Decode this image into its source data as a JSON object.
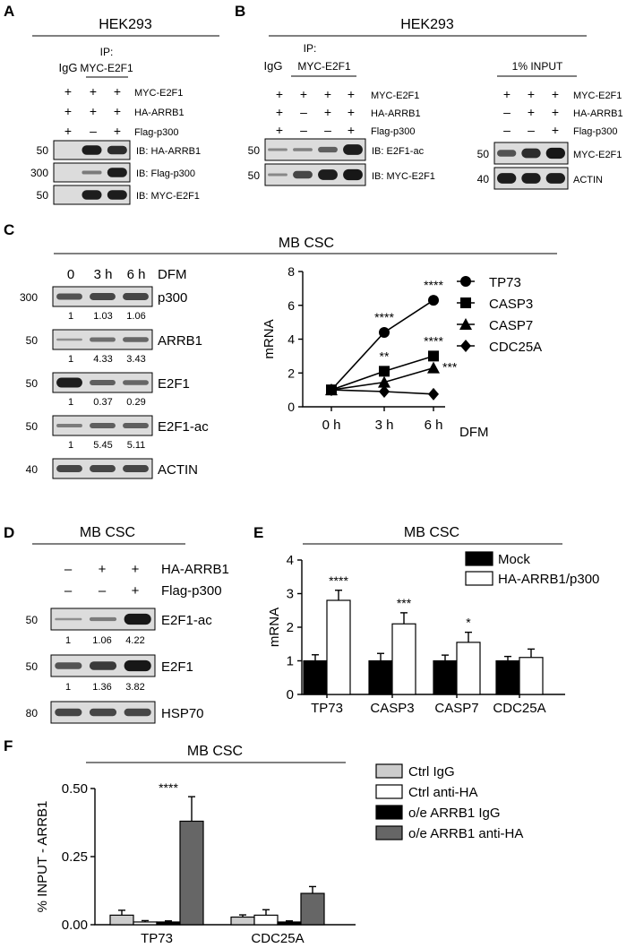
{
  "panelA": {
    "letter": "A",
    "cell_line": "HEK293",
    "ip_label": "IP:",
    "igg_label": "IgG",
    "ip_target": "MYC-E2F1",
    "signs": [
      [
        "+",
        "+",
        "+"
      ],
      [
        "+",
        "+",
        "+"
      ],
      [
        "+",
        "–",
        "+"
      ]
    ],
    "row_labels": [
      "MYC-E2F1",
      "HA-ARRB1",
      "Flag-p300"
    ],
    "blots": [
      {
        "mw": "50",
        "label": "IB: HA-ARRB1"
      },
      {
        "mw": "300",
        "label": "IB: Flag-p300"
      },
      {
        "mw": "50",
        "label": "IB: MYC-E2F1"
      }
    ]
  },
  "panelB": {
    "letter": "B",
    "cell_line": "HEK293",
    "ip_label": "IP:",
    "igg_label": "IgG",
    "ip_target": "MYC-E2F1",
    "input_label": "1% INPUT",
    "ip_signs": [
      [
        "+",
        "+",
        "+",
        "+"
      ],
      [
        "+",
        "–",
        "+",
        "+"
      ],
      [
        "+",
        "–",
        "–",
        "+"
      ]
    ],
    "input_signs": [
      [
        "+",
        "+",
        "+"
      ],
      [
        "–",
        "+",
        "+"
      ],
      [
        "–",
        "–",
        "+"
      ]
    ],
    "row_labels": [
      "MYC-E2F1",
      "HA-ARRB1",
      "Flag-p300"
    ],
    "ip_blots": [
      {
        "mw": "50",
        "label": "IB: E2F1-ac"
      },
      {
        "mw": "50",
        "label": "IB: MYC-E2F1"
      }
    ],
    "input_blots": [
      {
        "mw": "50",
        "label": "MYC-E2F1"
      },
      {
        "mw": "40",
        "label": "ACTIN"
      }
    ]
  },
  "panelC": {
    "letter": "C",
    "title": "MB CSC",
    "times": [
      "0",
      "3 h",
      "6 h"
    ],
    "treatment": "DFM",
    "blots": [
      {
        "mw": "300",
        "label": "p300",
        "quant": [
          "1",
          "1.03",
          "1.06"
        ]
      },
      {
        "mw": "50",
        "label": "ARRB1",
        "quant": [
          "1",
          "4.33",
          "3.43"
        ]
      },
      {
        "mw": "50",
        "label": "E2F1",
        "quant": [
          "1",
          "0.37",
          "0.29"
        ]
      },
      {
        "mw": "50",
        "label": "E2F1-ac",
        "quant": [
          "1",
          "5.45",
          "5.11"
        ]
      },
      {
        "mw": "40",
        "label": "ACTIN",
        "quant": []
      }
    ]
  },
  "panelD": {
    "letter": "D",
    "title": "MB CSC",
    "signs": [
      [
        "–",
        "+",
        "+"
      ],
      [
        "–",
        "–",
        "+"
      ]
    ],
    "row_labels": [
      "HA-ARRB1",
      "Flag-p300"
    ],
    "blots": [
      {
        "mw": "50",
        "label": "E2F1-ac",
        "quant": [
          "1",
          "1.06",
          "4.22"
        ]
      },
      {
        "mw": "50",
        "label": "E2F1",
        "quant": [
          "1",
          "1.36",
          "3.82"
        ]
      },
      {
        "mw": "80",
        "label": "HSP70",
        "quant": []
      }
    ]
  },
  "panelE": {
    "letter": "E",
    "title": "MB CSC"
  },
  "panelF": {
    "letter": "F",
    "title": "MB CSC"
  },
  "chart_data": [
    {
      "id": "C",
      "type": "line",
      "x": [
        "0 h",
        "3 h",
        "6 h"
      ],
      "xlabel": "DFM",
      "ylabel": "mRNA",
      "ylim": [
        0,
        8
      ],
      "yticks": [
        "0",
        "2",
        "4",
        "6",
        "8"
      ],
      "legend_position": "right",
      "series": [
        {
          "name": "TP73",
          "marker": "circle",
          "values": [
            1,
            4.4,
            6.3
          ],
          "sig": [
            "",
            "****",
            "****"
          ]
        },
        {
          "name": "CASP3",
          "marker": "square",
          "values": [
            1,
            2.1,
            3.0
          ],
          "sig": [
            "",
            "**",
            "****"
          ]
        },
        {
          "name": "CASP7",
          "marker": "triangle",
          "values": [
            1,
            1.45,
            2.3
          ],
          "sig": [
            "",
            "",
            "***"
          ]
        },
        {
          "name": "CDC25A",
          "marker": "diamond",
          "values": [
            1,
            0.9,
            0.75
          ],
          "sig": [
            "",
            "",
            ""
          ]
        }
      ]
    },
    {
      "id": "E",
      "type": "bar",
      "categories": [
        "TP73",
        "CASP3",
        "CASP7",
        "CDC25A"
      ],
      "ylabel": "mRNA",
      "ylim": [
        0,
        4
      ],
      "yticks": [
        "0",
        "1",
        "2",
        "3",
        "4"
      ],
      "legend_position": "top-right",
      "series": [
        {
          "name": "Mock",
          "color": "#000000",
          "values": [
            1,
            1,
            1,
            1
          ],
          "errors": [
            0.18,
            0.22,
            0.17,
            0.13
          ]
        },
        {
          "name": "HA-ARRB1/p300",
          "color": "#ffffff",
          "values": [
            2.8,
            2.1,
            1.55,
            1.1
          ],
          "errors": [
            0.3,
            0.33,
            0.3,
            0.25
          ]
        }
      ],
      "sig": [
        "****",
        "***",
        "*",
        ""
      ]
    },
    {
      "id": "F",
      "type": "bar",
      "categories": [
        "TP73",
        "CDC25A"
      ],
      "ylabel": "% INPUT - ARRB1",
      "ylim": [
        0,
        0.5
      ],
      "yticks": [
        "0.00",
        "0.25",
        "0.50"
      ],
      "legend_position": "right",
      "series": [
        {
          "name": "Ctrl IgG",
          "color": "#cccccc",
          "values": [
            0.035,
            0.028
          ],
          "errors": [
            0.018,
            0.008
          ]
        },
        {
          "name": "Ctrl anti-HA",
          "color": "#ffffff",
          "values": [
            0.01,
            0.035
          ],
          "errors": [
            0.005,
            0.02
          ]
        },
        {
          "name": "o/e ARRB1 IgG",
          "color": "#000000",
          "values": [
            0.01,
            0.01
          ],
          "errors": [
            0.004,
            0.004
          ]
        },
        {
          "name": "o/e ARRB1 anti-HA",
          "color": "#666666",
          "values": [
            0.38,
            0.115
          ],
          "errors": [
            0.09,
            0.025
          ]
        }
      ],
      "sig": [
        "****",
        ""
      ]
    }
  ]
}
